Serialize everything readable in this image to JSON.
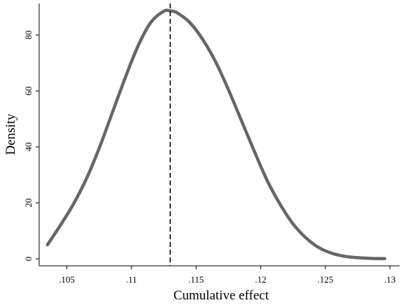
{
  "chart_data": {
    "type": "line",
    "title": "",
    "xlabel": "Cumulative effect",
    "ylabel": "Density",
    "xlim": [
      0.1034,
      0.1302
    ],
    "ylim": [
      0,
      90
    ],
    "x_ticks": [
      {
        "value": 0.105,
        "label": ".105"
      },
      {
        "value": 0.11,
        "label": ".11"
      },
      {
        "value": 0.115,
        "label": ".115"
      },
      {
        "value": 0.12,
        "label": ".12"
      },
      {
        "value": 0.125,
        "label": ".125"
      },
      {
        "value": 0.13,
        "label": ".13"
      }
    ],
    "y_ticks": [
      {
        "value": 0,
        "label": "0"
      },
      {
        "value": 20,
        "label": "20"
      },
      {
        "value": 40,
        "label": "40"
      },
      {
        "value": 60,
        "label": "60"
      },
      {
        "value": 80,
        "label": "80"
      }
    ],
    "grid": false,
    "reference_line": {
      "x": 0.113,
      "style": "dashed",
      "color": "#000000"
    },
    "series": [
      {
        "color": "#666666",
        "x": [
          0.1035,
          0.1045,
          0.1055,
          0.1065,
          0.1075,
          0.1085,
          0.1095,
          0.1105,
          0.1115,
          0.1125,
          0.113,
          0.1135,
          0.1145,
          0.1155,
          0.1165,
          0.1175,
          0.1185,
          0.1195,
          0.1205,
          0.1215,
          0.1225,
          0.1235,
          0.1245,
          0.1255,
          0.1265,
          0.1275,
          0.1285,
          0.1296
        ],
        "values": [
          5,
          12,
          19.5,
          28.5,
          39.5,
          52,
          64.5,
          76,
          84.5,
          88.5,
          88.6,
          88,
          84.5,
          78.5,
          70.5,
          60.5,
          49.5,
          38.5,
          28,
          19.5,
          12.5,
          7.5,
          4,
          2,
          0.9,
          0.4,
          0.15,
          0.05
        ]
      }
    ]
  }
}
